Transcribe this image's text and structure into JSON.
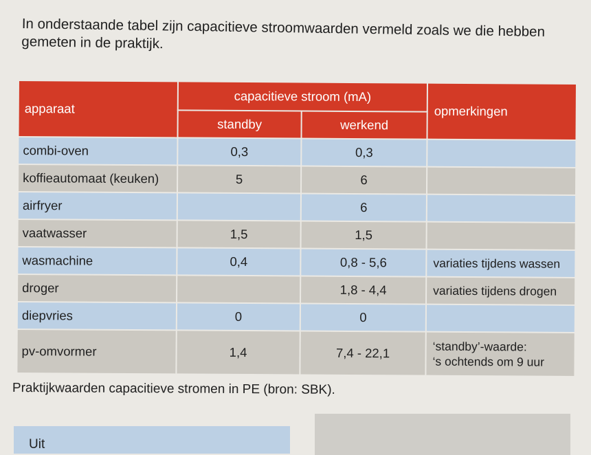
{
  "intro": "In onderstaande tabel zijn capacitieve stroomwaarden vermeld zoals we die hebben gemeten in de praktijk.",
  "table": {
    "headers": {
      "apparaat": "apparaat",
      "capacitieve_stroom": "capacitieve stroom (mA)",
      "standby": "standby",
      "werkend": "werkend",
      "opmerkingen": "opmerkingen"
    },
    "rows": [
      {
        "apparaat": "combi-oven",
        "standby": "0,3",
        "werkend": "0,3",
        "opmerkingen": ""
      },
      {
        "apparaat": "koffieautomaat (keuken)",
        "standby": "5",
        "werkend": "6",
        "opmerkingen": ""
      },
      {
        "apparaat": "airfryer",
        "standby": "",
        "werkend": "6",
        "opmerkingen": ""
      },
      {
        "apparaat": "vaatwasser",
        "standby": "1,5",
        "werkend": "1,5",
        "opmerkingen": ""
      },
      {
        "apparaat": "wasmachine",
        "standby": "0,4",
        "werkend": "0,8 - 5,6",
        "opmerkingen": "variaties tijdens wassen"
      },
      {
        "apparaat": "droger",
        "standby": "",
        "werkend": "1,8 - 4,4",
        "opmerkingen": "variaties tijdens drogen"
      },
      {
        "apparaat": "diepvries",
        "standby": "0",
        "werkend": "0",
        "opmerkingen": ""
      },
      {
        "apparaat": "pv-omvormer",
        "standby": "1,4",
        "werkend": "7,4 - 22,1",
        "opmerkingen_line1": "‘standby’-waarde:",
        "opmerkingen_line2": "‘s ochtends om 9 uur"
      }
    ]
  },
  "caption": "Praktijkwaarden capacitieve stromen in PE (bron: SBK).",
  "next_box_text": "Uit",
  "colors": {
    "header": "#d33a26",
    "row_blue": "#bcd0e4",
    "row_grey": "#cbc8c1",
    "page": "#ebe9e4"
  }
}
